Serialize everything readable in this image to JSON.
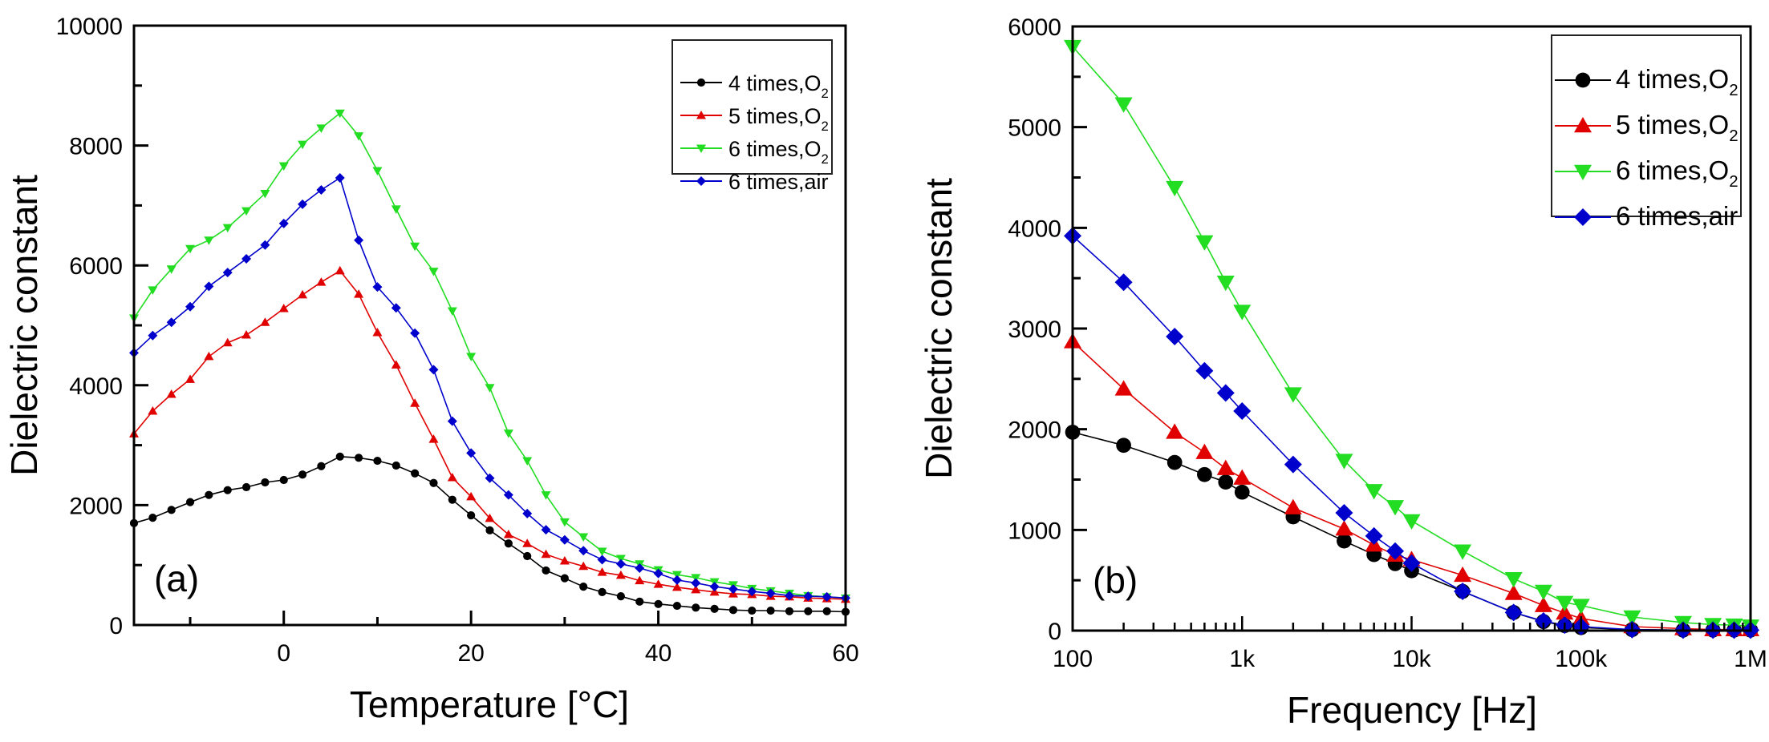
{
  "chart_data": [
    {
      "type": "line",
      "panel_label": "(a)",
      "title": "",
      "xlabel": "Temperature [°C]",
      "ylabel": "Dielectric constant",
      "xlim": [
        -16,
        60
      ],
      "ylim": [
        0,
        10000
      ],
      "x_ticks": [
        0,
        20,
        40,
        60
      ],
      "x_tick_labels": [
        "0",
        "20",
        "40",
        "60"
      ],
      "y_ticks": [
        0,
        2000,
        4000,
        6000,
        8000,
        10000
      ],
      "y_tick_labels": [
        "0",
        "2000",
        "4000",
        "6000",
        "8000",
        "10000"
      ],
      "grid": false,
      "legend_position": "top-right",
      "x": [
        -16,
        -14,
        -12,
        -10,
        -8,
        -6,
        -4,
        -2,
        0,
        2,
        4,
        6,
        8,
        10,
        12,
        14,
        16,
        18,
        20,
        22,
        24,
        26,
        28,
        30,
        32,
        34,
        36,
        38,
        40,
        42,
        44,
        46,
        48,
        50,
        52,
        54,
        56,
        58,
        60
      ],
      "series": [
        {
          "name": "4 times,O2",
          "label_main": "4 times,O",
          "label_sub": "2",
          "color": "#000000",
          "marker": "circle",
          "values": [
            1700,
            1790,
            1920,
            2050,
            2170,
            2250,
            2300,
            2380,
            2420,
            2510,
            2650,
            2810,
            2790,
            2740,
            2660,
            2530,
            2370,
            2090,
            1830,
            1580,
            1360,
            1150,
            910,
            780,
            640,
            550,
            480,
            390,
            350,
            320,
            290,
            270,
            250,
            240,
            240,
            230,
            230,
            230,
            220
          ]
        },
        {
          "name": "5 times,O2",
          "label_main": "5 times,O",
          "label_sub": "2",
          "color": "#e00000",
          "marker": "triangle-up",
          "values": [
            3190,
            3570,
            3850,
            4100,
            4480,
            4710,
            4840,
            5050,
            5280,
            5510,
            5720,
            5910,
            5520,
            4880,
            4340,
            3700,
            3100,
            2460,
            2140,
            1780,
            1510,
            1360,
            1180,
            1070,
            980,
            880,
            830,
            740,
            680,
            630,
            590,
            550,
            520,
            510,
            480,
            470,
            450,
            440,
            430
          ]
        },
        {
          "name": "6 times,O2",
          "label_main": "6 times,O",
          "label_sub": "2",
          "color": "#22dd22",
          "marker": "triangle-down",
          "values": [
            5120,
            5590,
            5940,
            6280,
            6420,
            6630,
            6910,
            7200,
            7660,
            8020,
            8290,
            8540,
            8160,
            7580,
            6940,
            6320,
            5900,
            5240,
            4480,
            3960,
            3200,
            2740,
            2170,
            1720,
            1470,
            1230,
            1110,
            1020,
            920,
            840,
            790,
            720,
            670,
            610,
            570,
            530,
            490,
            470,
            450
          ]
        },
        {
          "name": "6 times,air",
          "label_main": "6 times,air",
          "label_sub": "",
          "color": "#0000cc",
          "marker": "diamond",
          "values": [
            4540,
            4830,
            5050,
            5310,
            5650,
            5880,
            6110,
            6340,
            6700,
            7020,
            7260,
            7460,
            6420,
            5640,
            5290,
            4870,
            4260,
            3400,
            2870,
            2450,
            2170,
            1860,
            1590,
            1420,
            1240,
            1090,
            1020,
            950,
            860,
            750,
            700,
            640,
            600,
            560,
            530,
            490,
            480,
            470,
            450
          ]
        }
      ]
    },
    {
      "type": "line",
      "panel_label": "(b)",
      "title": "",
      "xlabel": "Frequency [Hz]",
      "ylabel": "Dielectric constant",
      "xscale": "log",
      "xlim": [
        100,
        1000000
      ],
      "ylim": [
        0,
        6000
      ],
      "x_ticks": [
        100,
        1000,
        10000,
        100000,
        1000000
      ],
      "x_tick_labels": [
        "100",
        "1k",
        "10k",
        "100k",
        "1M"
      ],
      "y_ticks": [
        0,
        1000,
        2000,
        3000,
        4000,
        5000,
        6000
      ],
      "y_tick_labels": [
        "0",
        "1000",
        "2000",
        "3000",
        "4000",
        "5000",
        "6000"
      ],
      "grid": false,
      "legend_position": "top-right",
      "x": [
        100,
        200,
        400,
        600,
        800,
        1000,
        2000,
        4000,
        6000,
        8000,
        10000,
        20000,
        40000,
        60000,
        80000,
        100000,
        200000,
        400000,
        600000,
        800000,
        1000000
      ],
      "series": [
        {
          "name": "4 times,O2",
          "label_main": "4 times,O",
          "label_sub": "2",
          "color": "#000000",
          "marker": "circle",
          "values": [
            1970,
            1840,
            1670,
            1550,
            1475,
            1375,
            1130,
            890,
            755,
            665,
            595,
            390,
            180,
            90,
            50,
            30,
            10,
            5,
            5,
            5,
            5
          ]
        },
        {
          "name": "5 times,O2",
          "label_main": "5 times,O",
          "label_sub": "2",
          "color": "#e00000",
          "marker": "triangle-up",
          "values": [
            2870,
            2400,
            1970,
            1770,
            1610,
            1515,
            1220,
            1010,
            850,
            750,
            705,
            550,
            370,
            250,
            175,
            120,
            40,
            20,
            10,
            10,
            10
          ]
        },
        {
          "name": "6 times,O2",
          "label_main": "6 times,O",
          "label_sub": "2",
          "color": "#22dd22",
          "marker": "triangle-down",
          "values": [
            5800,
            5230,
            4400,
            3860,
            3460,
            3170,
            2350,
            1690,
            1390,
            1230,
            1090,
            790,
            515,
            390,
            280,
            250,
            135,
            80,
            60,
            55,
            45
          ]
        },
        {
          "name": "6 times,air",
          "label_main": "6 times,air",
          "label_sub": "",
          "color": "#0000cc",
          "marker": "diamond",
          "values": [
            3920,
            3460,
            2920,
            2580,
            2360,
            2180,
            1650,
            1170,
            940,
            790,
            670,
            390,
            180,
            95,
            55,
            40,
            10,
            5,
            5,
            5,
            5
          ]
        }
      ]
    }
  ]
}
